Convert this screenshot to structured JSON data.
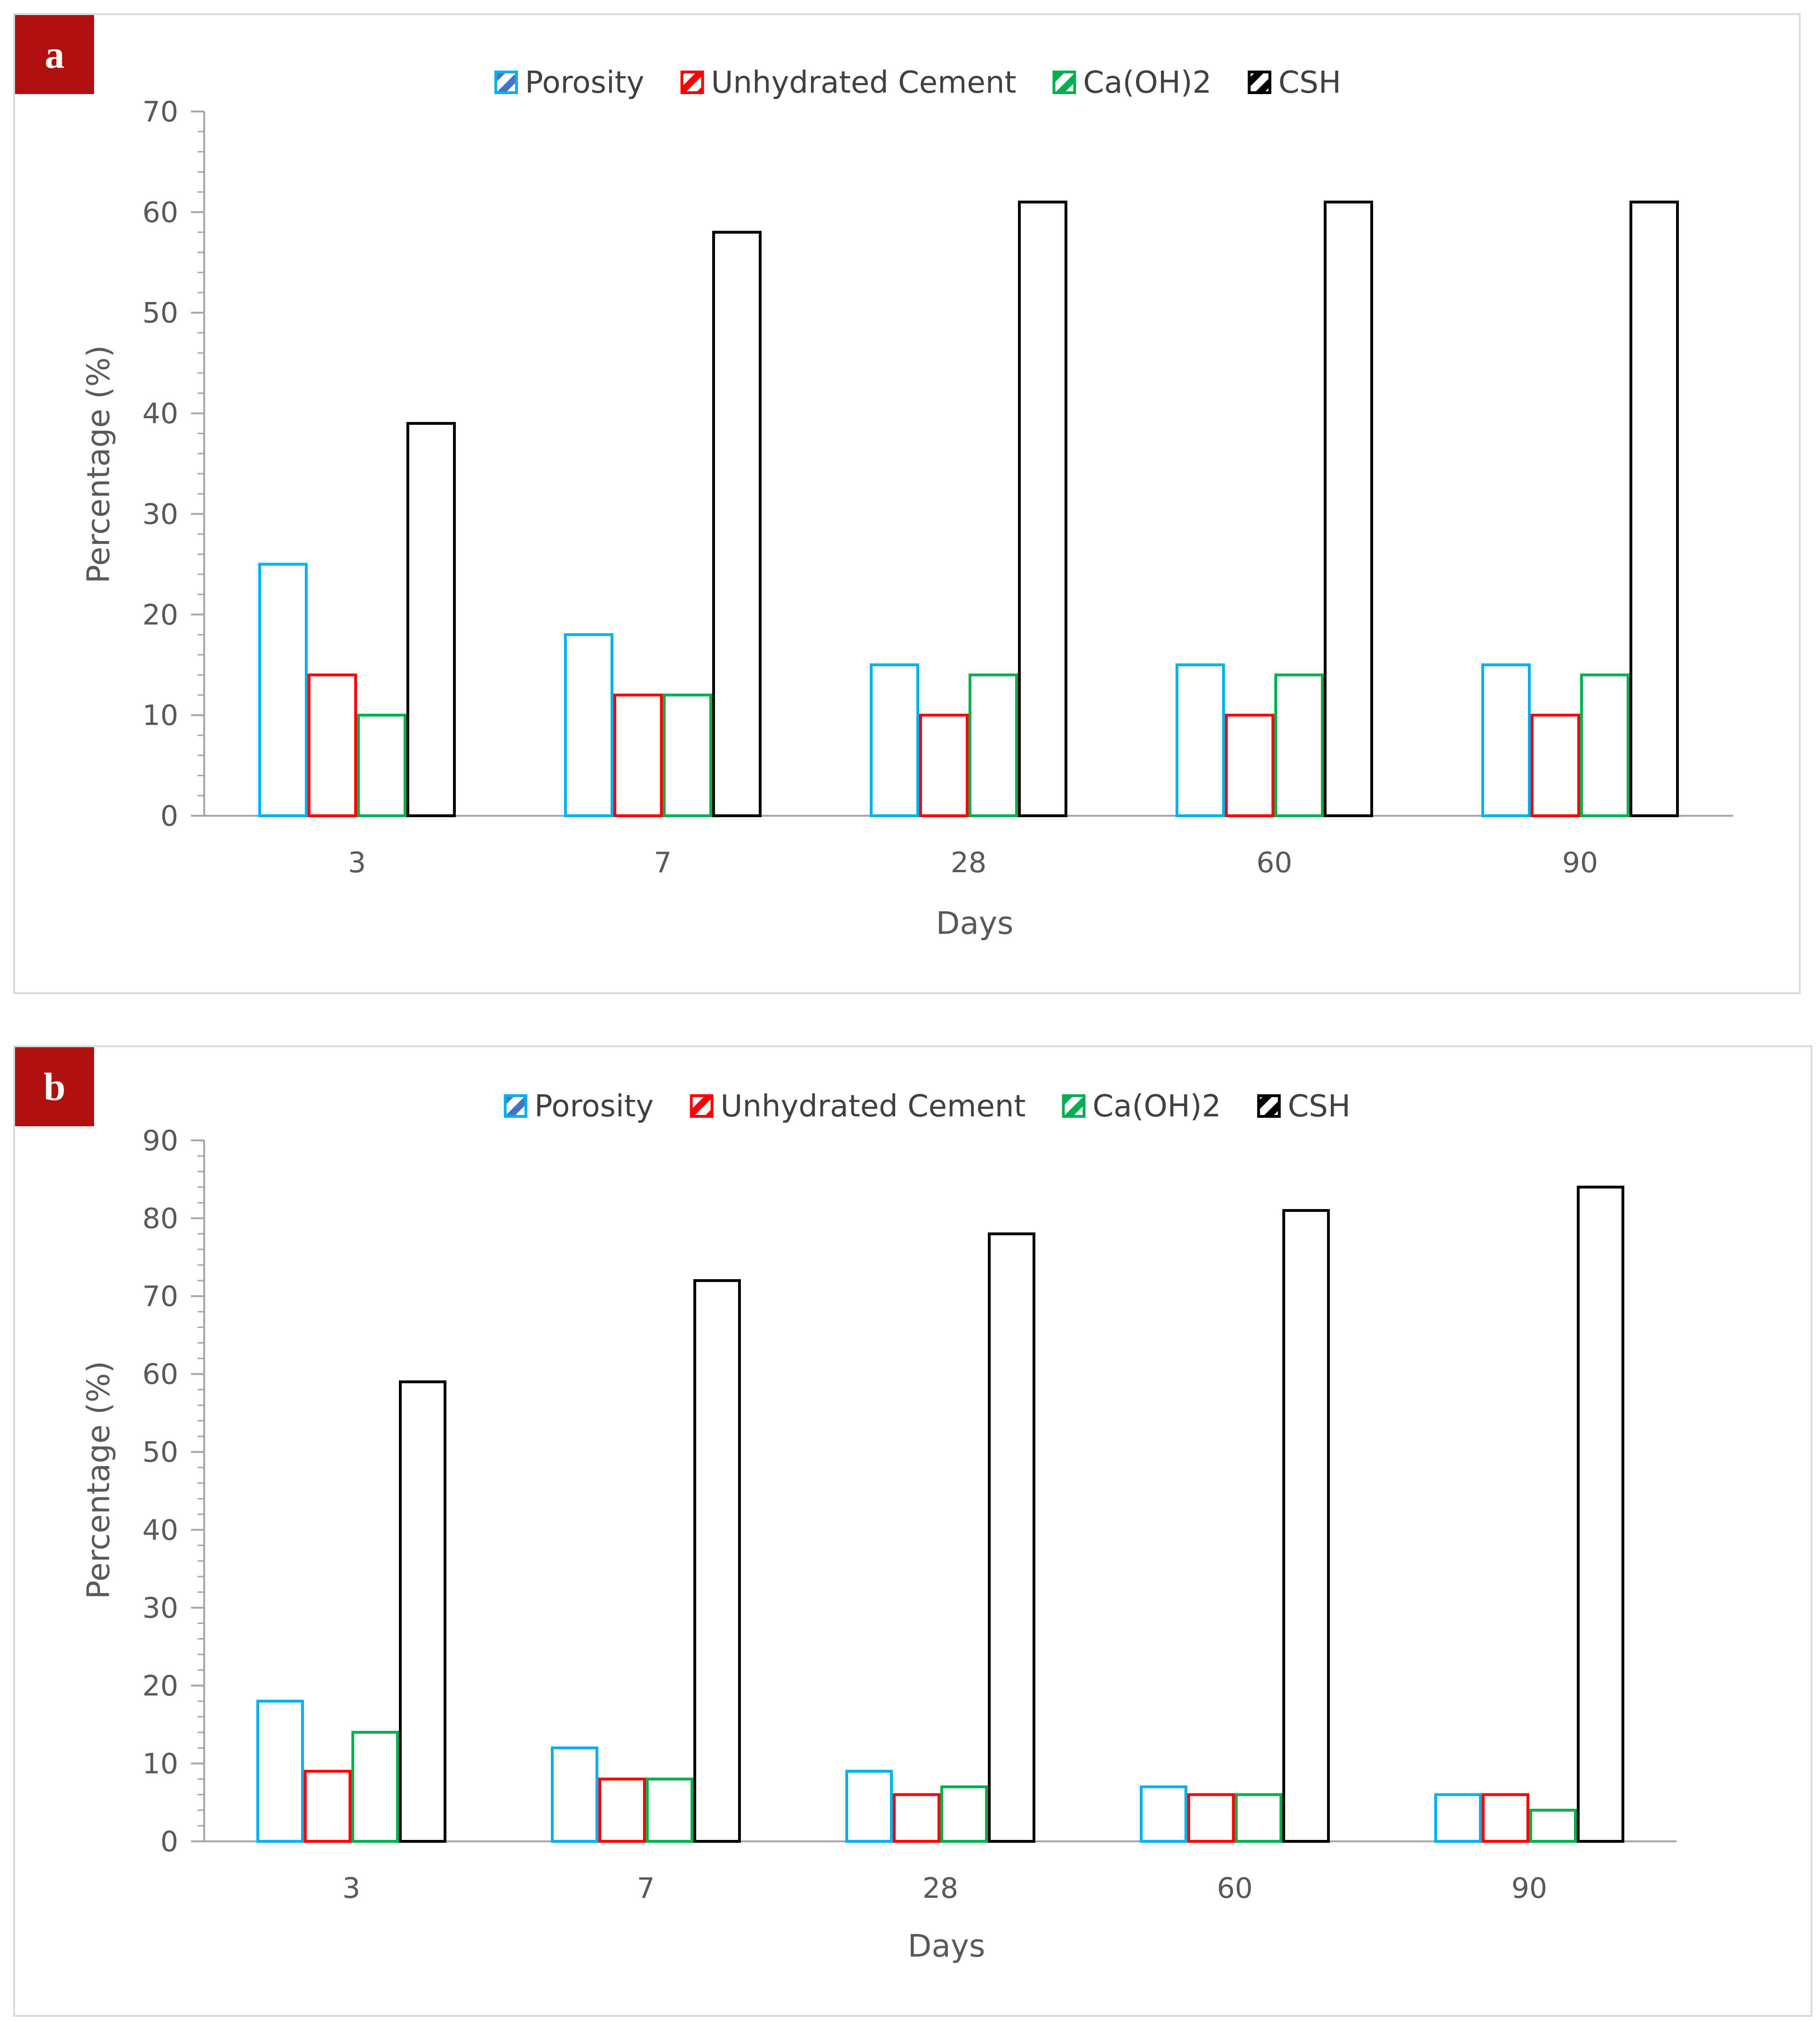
{
  "figure": {
    "panels": [
      {
        "tag": "a"
      },
      {
        "tag": "b"
      }
    ]
  },
  "colors": {
    "porosity_fill": "#4472c4",
    "porosity_edge": "#00b0f0",
    "cement": "#ff0000",
    "caoh2": "#00b050",
    "csh": "#000000",
    "tag_bg": "#b01010",
    "axis": "#a6a6a6",
    "text": "#595959"
  },
  "chart_data": [
    {
      "type": "bar",
      "panel": "a",
      "categories": [
        "3",
        "7",
        "28",
        "60",
        "90"
      ],
      "series": [
        {
          "name": "Porosity",
          "values": [
            25,
            18,
            15,
            15,
            15
          ]
        },
        {
          "name": "Unhydrated Cement",
          "values": [
            14,
            12,
            10,
            10,
            10
          ]
        },
        {
          "name": "Ca(OH)2",
          "values": [
            10,
            12,
            14,
            14,
            14
          ]
        },
        {
          "name": "CSH",
          "values": [
            39,
            58,
            61,
            61,
            61
          ]
        }
      ],
      "title": "",
      "xlabel": "Days",
      "ylabel": "Percentage (%)",
      "ylim": [
        0,
        70
      ],
      "yticks": [
        "0",
        "10",
        "20",
        "30",
        "40",
        "50",
        "60",
        "70"
      ],
      "legend": "top-center",
      "grid": false
    },
    {
      "type": "bar",
      "panel": "b",
      "categories": [
        "3",
        "7",
        "28",
        "60",
        "90"
      ],
      "series": [
        {
          "name": "Porosity",
          "values": [
            18,
            12,
            9,
            7,
            6
          ]
        },
        {
          "name": "Unhydrated Cement",
          "values": [
            9,
            8,
            6,
            6,
            6
          ]
        },
        {
          "name": "Ca(OH)2",
          "values": [
            14,
            8,
            7,
            6,
            4
          ]
        },
        {
          "name": "CSH",
          "values": [
            59,
            72,
            78,
            81,
            84
          ]
        }
      ],
      "title": "",
      "xlabel": "Days",
      "ylabel": "Percentage (%)",
      "ylim": [
        0,
        90
      ],
      "yticks": [
        "0",
        "10",
        "20",
        "30",
        "40",
        "50",
        "60",
        "70",
        "80",
        "90"
      ],
      "legend": "top-center",
      "grid": false
    }
  ]
}
